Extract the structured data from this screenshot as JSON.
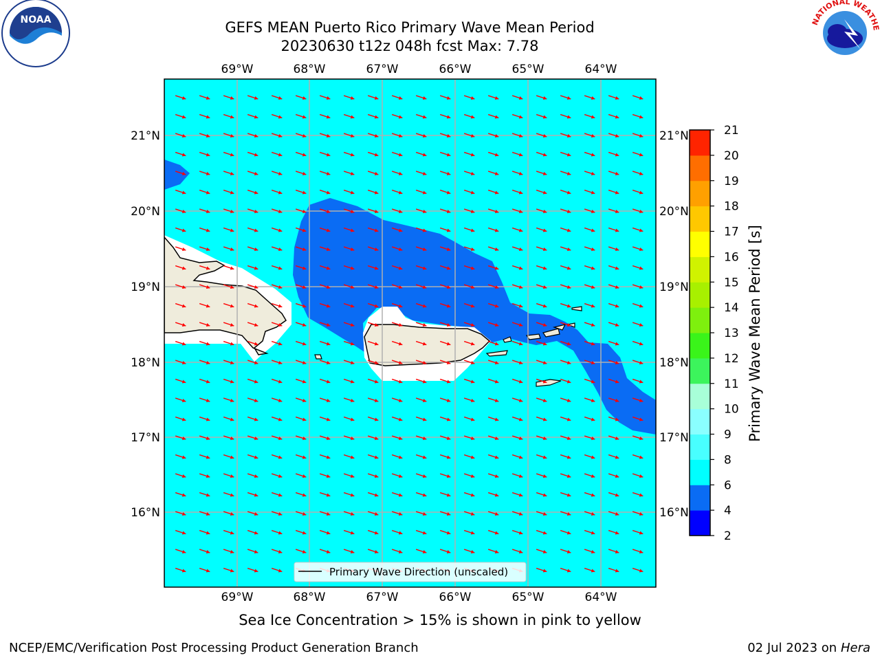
{
  "title": {
    "line1": "GEFS MEAN Puerto Rico Primary Wave Mean Period",
    "line2": "20230630 t12z 048h fcst   Max: 7.78"
  },
  "logos": {
    "left": "NOAA",
    "left_ring": "NATIONAL OCEANIC AND ATMOSPHERIC ADMINISTRATION · U.S. DEPARTMENT OF COMMERCE",
    "right_ring": "NATIONAL WEATHER SERVICE"
  },
  "axes": {
    "lon_ticks": [
      "69°W",
      "68°W",
      "67°W",
      "66°W",
      "65°W",
      "64°W"
    ],
    "lat_ticks": [
      "21°N",
      "20°N",
      "19°N",
      "18°N",
      "17°N",
      "16°N"
    ]
  },
  "legend": {
    "label": "Primary Wave Direction (unscaled)"
  },
  "colorbar": {
    "label": "Primary Wave Mean Period [s]",
    "ticks": [
      "2",
      "4",
      "6",
      "8",
      "9",
      "10",
      "11",
      "12",
      "13",
      "14",
      "15",
      "16",
      "17",
      "18",
      "19",
      "20",
      "21"
    ],
    "colors": [
      "#0000ff",
      "#0a6cf4",
      "#00ffff",
      "#48ffff",
      "#8affff",
      "#a8ffd8",
      "#3cf45c",
      "#3af41a",
      "#7ef00e",
      "#a8f000",
      "#d0f200",
      "#ffff00",
      "#ffc800",
      "#ffa000",
      "#ff6e00",
      "#ff2400"
    ]
  },
  "annotations": {
    "sea_ice": "Sea Ice Concentration > 15% is shown in pink to yellow"
  },
  "footer": {
    "left": "NCEP/EMC/Verification Post Processing Product Generation Branch",
    "date": "02 Jul 2023 on ",
    "host": "Hera"
  },
  "colors": {
    "ocean_6_8": "#00ffff",
    "ocean_4_6": "#0a6cf4",
    "land": "#efecdc",
    "arrows": "#ff0000",
    "grid": "#b0b0b0"
  }
}
